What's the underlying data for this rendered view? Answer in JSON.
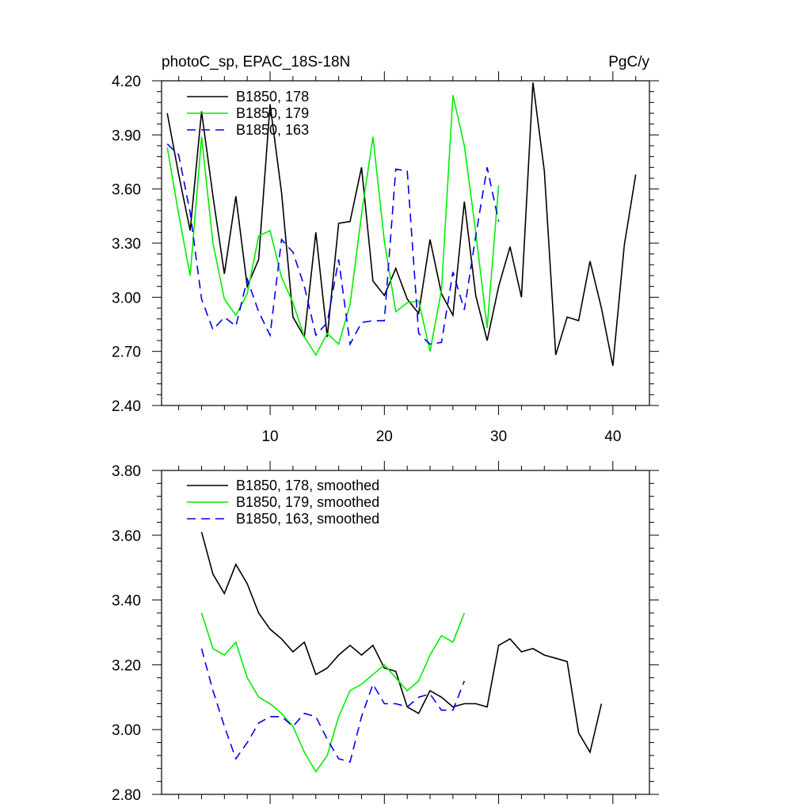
{
  "top_title_left": "photoC_sp, EPAC_18S-18N",
  "top_title_right": "PgC/y",
  "colors": {
    "s178": "#000000",
    "s179": "#00ee00",
    "s163": "#0000ee"
  },
  "chart_data": [
    {
      "type": "line",
      "title": "photoC_sp, EPAC_18S-18N",
      "units": "PgC/y",
      "xlim": [
        0.5,
        43.2
      ],
      "ylim": [
        2.4,
        4.2
      ],
      "xticks": [
        10,
        20,
        30,
        40
      ],
      "xticklabels": [
        "10",
        "20",
        "30",
        "40"
      ],
      "yticks": [
        2.4,
        2.7,
        3.0,
        3.3,
        3.6,
        3.9,
        4.2
      ],
      "yticklabels": [
        "2.40",
        "2.70",
        "3.00",
        "3.30",
        "3.60",
        "3.90",
        "4.20"
      ],
      "legend_position": "top-left",
      "series": [
        {
          "name": "B1850, 178",
          "color": "#000000",
          "dash": "solid",
          "x_start": 1,
          "values": [
            4.02,
            3.68,
            3.37,
            4.03,
            3.56,
            3.13,
            3.56,
            3.06,
            3.21,
            4.07,
            3.58,
            2.89,
            2.78,
            3.36,
            2.78,
            3.41,
            3.42,
            3.72,
            3.09,
            3.01,
            3.16,
            2.99,
            2.91,
            3.32,
            3.02,
            2.9,
            3.53,
            3.01,
            2.76,
            3.06,
            3.28,
            3.0,
            4.19,
            3.7,
            2.68,
            2.89,
            2.87,
            3.2,
            2.94,
            2.62,
            3.29,
            3.68
          ]
        },
        {
          "name": "B1850, 179",
          "color": "#00ee00",
          "dash": "solid",
          "x_start": 1,
          "values": [
            3.83,
            3.46,
            3.12,
            3.89,
            3.3,
            2.99,
            2.9,
            3.02,
            3.34,
            3.37,
            3.11,
            2.97,
            2.78,
            2.68,
            2.8,
            2.74,
            2.96,
            3.46,
            3.89,
            3.31,
            2.92,
            2.97,
            2.98,
            2.7,
            3.04,
            4.12,
            3.84,
            3.36,
            2.83,
            3.62
          ]
        },
        {
          "name": "B1850, 163",
          "color": "#0000ee",
          "dash": "dashed",
          "x_start": 1,
          "values": [
            3.85,
            3.79,
            3.47,
            2.99,
            2.82,
            2.89,
            2.84,
            3.1,
            2.92,
            2.79,
            3.32,
            3.25,
            3.06,
            2.79,
            2.86,
            3.21,
            2.74,
            2.86,
            2.87,
            2.87,
            3.71,
            3.7,
            2.8,
            2.74,
            2.75,
            3.14,
            2.93,
            3.34,
            3.72,
            3.42
          ]
        }
      ]
    },
    {
      "type": "line",
      "xlim": [
        0.5,
        43.2
      ],
      "ylim": [
        2.8,
        3.8
      ],
      "xticks": [
        10,
        20,
        30,
        40
      ],
      "yticks": [
        2.8,
        3.0,
        3.2,
        3.4,
        3.6,
        3.8
      ],
      "yticklabels": [
        "2.80",
        "3.00",
        "3.20",
        "3.40",
        "3.60",
        "3.80"
      ],
      "legend_position": "top-left",
      "series": [
        {
          "name": "B1850, 178, smoothed",
          "color": "#000000",
          "dash": "solid",
          "x_start": 4,
          "values": [
            3.61,
            3.48,
            3.42,
            3.51,
            3.45,
            3.36,
            3.31,
            3.28,
            3.24,
            3.27,
            3.17,
            3.19,
            3.23,
            3.26,
            3.23,
            3.26,
            3.19,
            3.18,
            3.07,
            3.05,
            3.12,
            3.1,
            3.07,
            3.08,
            3.08,
            3.07,
            3.26,
            3.28,
            3.24,
            3.25,
            3.23,
            3.22,
            3.21,
            2.99,
            2.93,
            3.08
          ]
        },
        {
          "name": "B1850, 179, smoothed",
          "color": "#00ee00",
          "dash": "solid",
          "x_start": 4,
          "values": [
            3.36,
            3.25,
            3.23,
            3.27,
            3.16,
            3.1,
            3.08,
            3.05,
            3.01,
            2.93,
            2.87,
            2.92,
            3.04,
            3.12,
            3.14,
            3.17,
            3.2,
            3.16,
            3.12,
            3.15,
            3.23,
            3.29,
            3.27,
            3.36
          ]
        },
        {
          "name": "B1850, 163, smoothed",
          "color": "#0000ee",
          "dash": "dashed",
          "x_start": 4,
          "values": [
            3.25,
            3.12,
            3.01,
            2.91,
            2.96,
            3.02,
            3.04,
            3.04,
            3.01,
            3.05,
            3.04,
            2.97,
            2.91,
            2.9,
            3.04,
            3.14,
            3.08,
            3.08,
            3.07,
            3.1,
            3.11,
            3.06,
            3.06,
            3.15
          ]
        }
      ]
    }
  ]
}
